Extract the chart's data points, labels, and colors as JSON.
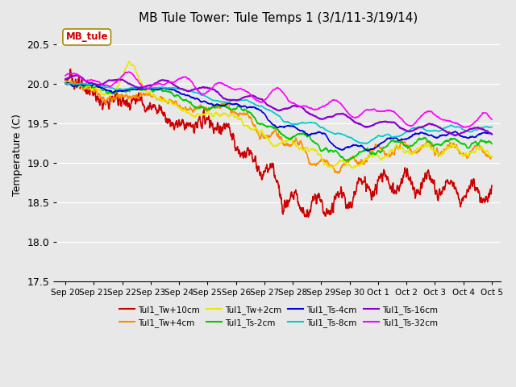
{
  "title": "MB Tule Tower: Tule Temps 1 (3/1/11-3/19/14)",
  "ylabel": "Temperature (C)",
  "ylim": [
    17.5,
    20.7
  ],
  "yticks": [
    17.5,
    18.0,
    18.5,
    19.0,
    19.5,
    20.0,
    20.5
  ],
  "annotation_box": "MB_tule",
  "annotation_box_color": "#cc0000",
  "bg_color": "#e8e8e8",
  "grid_color": "#ffffff",
  "series": [
    {
      "label": "Tul1_Tw+10cm",
      "color": "#cc0000",
      "lw": 1.2
    },
    {
      "label": "Tul1_Tw+4cm",
      "color": "#ff8c00",
      "lw": 1.2
    },
    {
      "label": "Tul1_Tw+2cm",
      "color": "#e8e800",
      "lw": 1.2
    },
    {
      "label": "Tul1_Ts-2cm",
      "color": "#00cc00",
      "lw": 1.2
    },
    {
      "label": "Tul1_Ts-4cm",
      "color": "#0000dd",
      "lw": 1.2
    },
    {
      "label": "Tul1_Ts-8cm",
      "color": "#00cccc",
      "lw": 1.2
    },
    {
      "label": "Tul1_Ts-16cm",
      "color": "#8800cc",
      "lw": 1.5
    },
    {
      "label": "Tul1_Ts-32cm",
      "color": "#ff00ff",
      "lw": 1.2
    }
  ],
  "num_points": 1500,
  "legend_ncol": 4,
  "figsize": [
    6.4,
    4.8
  ],
  "dpi": 100
}
